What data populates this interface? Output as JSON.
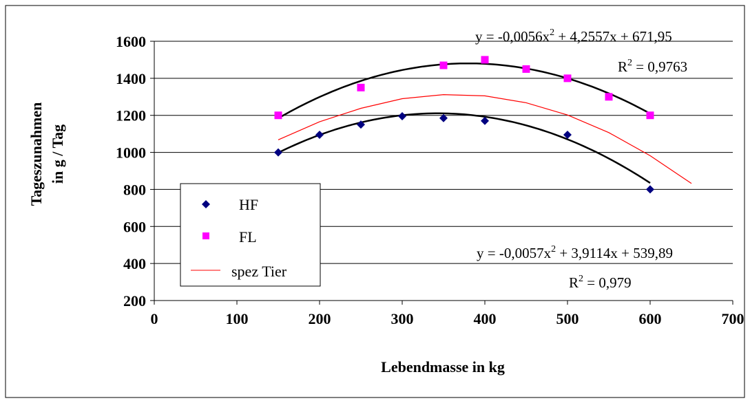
{
  "chart_data": {
    "type": "scatter",
    "xlabel": "Lebendmasse in kg",
    "ylabel_lines": [
      "Tageszunahmen",
      "in g / Tag"
    ],
    "xlim": [
      0,
      700
    ],
    "ylim": [
      200,
      1600
    ],
    "x_ticks": [
      "0",
      "100",
      "200",
      "300",
      "400",
      "500",
      "600",
      "700"
    ],
    "y_ticks": [
      "200",
      "400",
      "600",
      "800",
      "1000",
      "1200",
      "1400",
      "1600"
    ],
    "grid": "horizontal",
    "legend_position": "lower-left",
    "series": [
      {
        "name": "HF",
        "marker": "diamond",
        "color": "#000080",
        "points": [
          [
            150,
            1000
          ],
          [
            200,
            1095
          ],
          [
            250,
            1150
          ],
          [
            300,
            1195
          ],
          [
            350,
            1185
          ],
          [
            400,
            1170
          ],
          [
            500,
            1095
          ],
          [
            600,
            800
          ]
        ],
        "trendline": {
          "a": -0.0057,
          "b": 3.9114,
          "c": 539.89,
          "x_range": [
            150,
            600
          ],
          "color": "#000000"
        }
      },
      {
        "name": "FL",
        "marker": "square",
        "color": "#ff00ff",
        "points": [
          [
            150,
            1200
          ],
          [
            250,
            1350
          ],
          [
            350,
            1470
          ],
          [
            400,
            1500
          ],
          [
            450,
            1450
          ],
          [
            500,
            1400
          ],
          [
            550,
            1300
          ],
          [
            600,
            1200
          ]
        ],
        "trendline": {
          "a": -0.0056,
          "b": 4.2557,
          "c": 671.95,
          "x_range": [
            150,
            600
          ],
          "color": "#000000"
        }
      },
      {
        "name": "spez Tier",
        "marker": "line",
        "color": "#ff0000",
        "curve": [
          [
            150,
            1068
          ],
          [
            200,
            1165
          ],
          [
            250,
            1238
          ],
          [
            300,
            1290
          ],
          [
            350,
            1312
          ],
          [
            400,
            1305
          ],
          [
            450,
            1268
          ],
          [
            500,
            1202
          ],
          [
            550,
            1107
          ],
          [
            600,
            982
          ],
          [
            650,
            832
          ]
        ]
      }
    ],
    "annotations": {
      "fl_equation": "y = -0,0056x² + 4,2557x + 671,95",
      "fl_r2": "R² = 0,9763",
      "hf_equation": "y = -0,0057x² + 3,9114x + 539,89",
      "hf_r2": "R² = 0,979"
    }
  }
}
